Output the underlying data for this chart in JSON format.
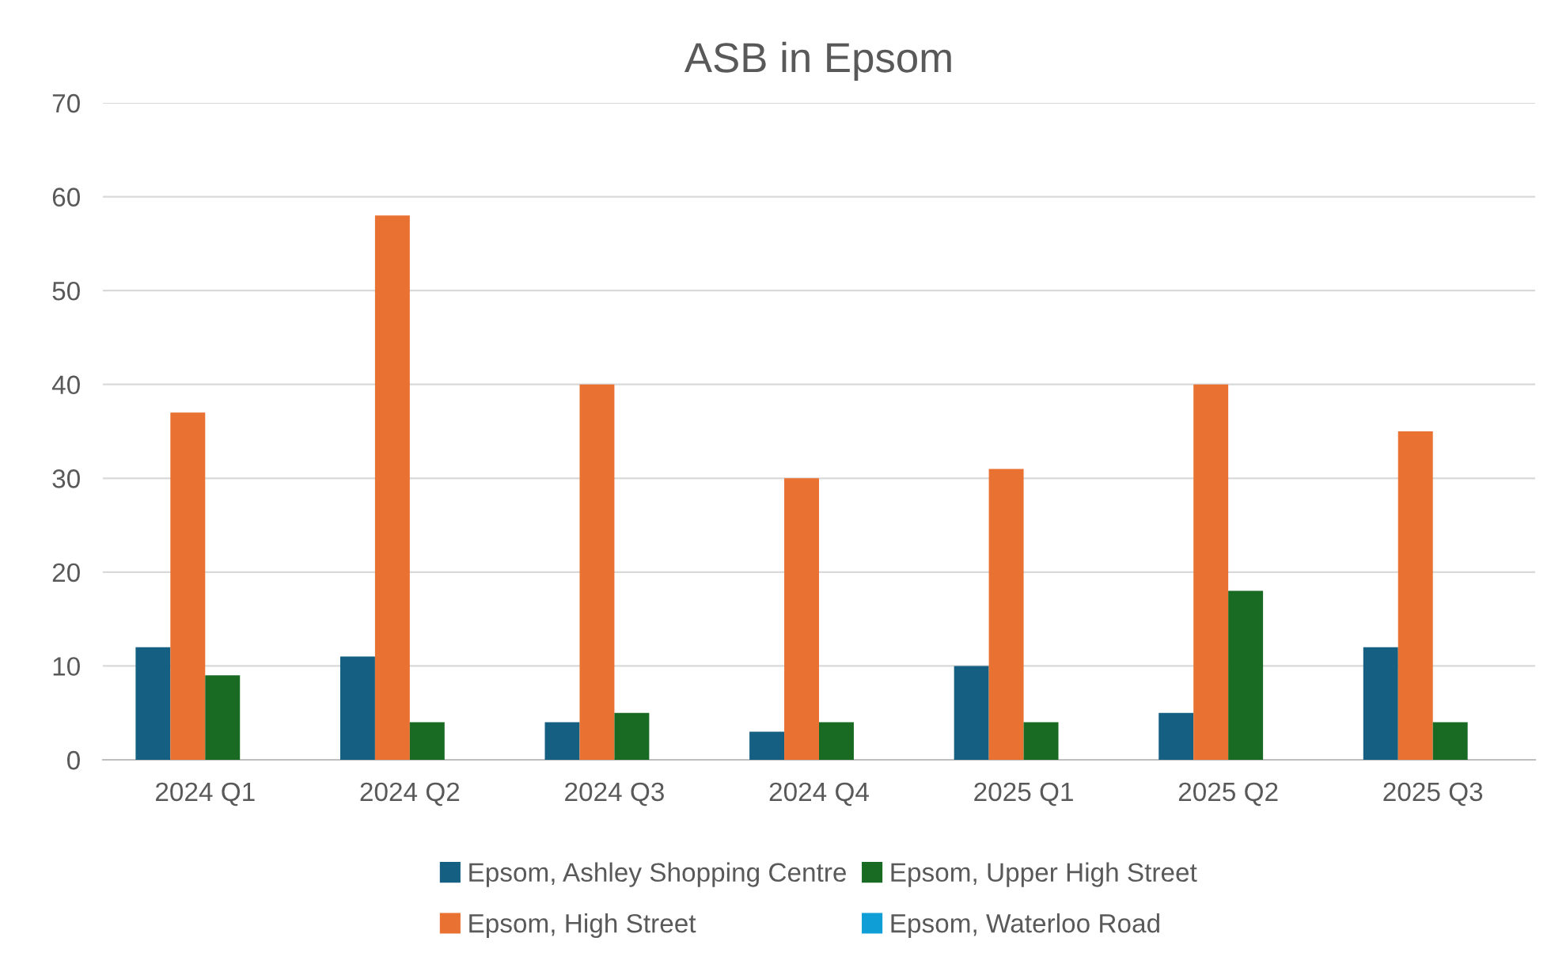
{
  "chart_data": {
    "type": "bar",
    "title": "ASB in Epsom",
    "categories": [
      "2024 Q1",
      "2024 Q2",
      "2024 Q3",
      "2024 Q4",
      "2025 Q1",
      "2025 Q2",
      "2025 Q3"
    ],
    "series": [
      {
        "name": "Epsom, Ashley Shopping Centre",
        "color": "#156082",
        "values": [
          12,
          11,
          4,
          3,
          10,
          5,
          12
        ]
      },
      {
        "name": "Epsom, High Street",
        "color": "#e97132",
        "values": [
          37,
          58,
          40,
          30,
          31,
          40,
          35
        ]
      },
      {
        "name": "Epsom, Upper High Street",
        "color": "#196b24",
        "values": [
          9,
          4,
          5,
          4,
          4,
          18,
          4
        ]
      },
      {
        "name": "Epsom, Waterloo Road",
        "color": "#0f9ed5",
        "values": [
          0,
          0,
          0,
          0,
          0,
          0,
          0
        ]
      }
    ],
    "ylim": [
      0,
      70
    ],
    "yticks": [
      0,
      10,
      20,
      30,
      40,
      50,
      60,
      70
    ],
    "grid": "y",
    "legend": "bottom"
  }
}
